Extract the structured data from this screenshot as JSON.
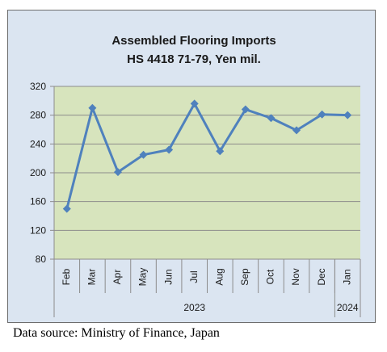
{
  "colors": {
    "frame_bg": "#dbe5f1",
    "plot_bg": "#d7e4bd",
    "line": "#4f81bd",
    "grid": "#8c8c8c",
    "axis": "#8c8c8c"
  },
  "chart_data": {
    "type": "line",
    "title": [
      "Assembled Flooring Imports",
      "HS 4418 71-79, Yen mil."
    ],
    "categories": [
      "Feb",
      "Mar",
      "Apr",
      "May",
      "Jun",
      "Jul",
      "Aug",
      "Sep",
      "Oct",
      "Nov",
      "Dec",
      "Jan"
    ],
    "category_groups": [
      {
        "label": "2023",
        "count": 11
      },
      {
        "label": "2024",
        "count": 1
      }
    ],
    "series": [
      {
        "values": [
          150,
          290,
          201,
          225,
          232,
          296,
          230,
          288,
          276,
          259,
          281,
          280
        ]
      }
    ],
    "ylim": [
      80,
      320
    ],
    "yticks": [
      80,
      120,
      160,
      200,
      240,
      280,
      320
    ],
    "grid": true,
    "legend": "none",
    "xlabel": "",
    "ylabel": ""
  },
  "source_note": "Data source: Ministry of Finance, Japan"
}
